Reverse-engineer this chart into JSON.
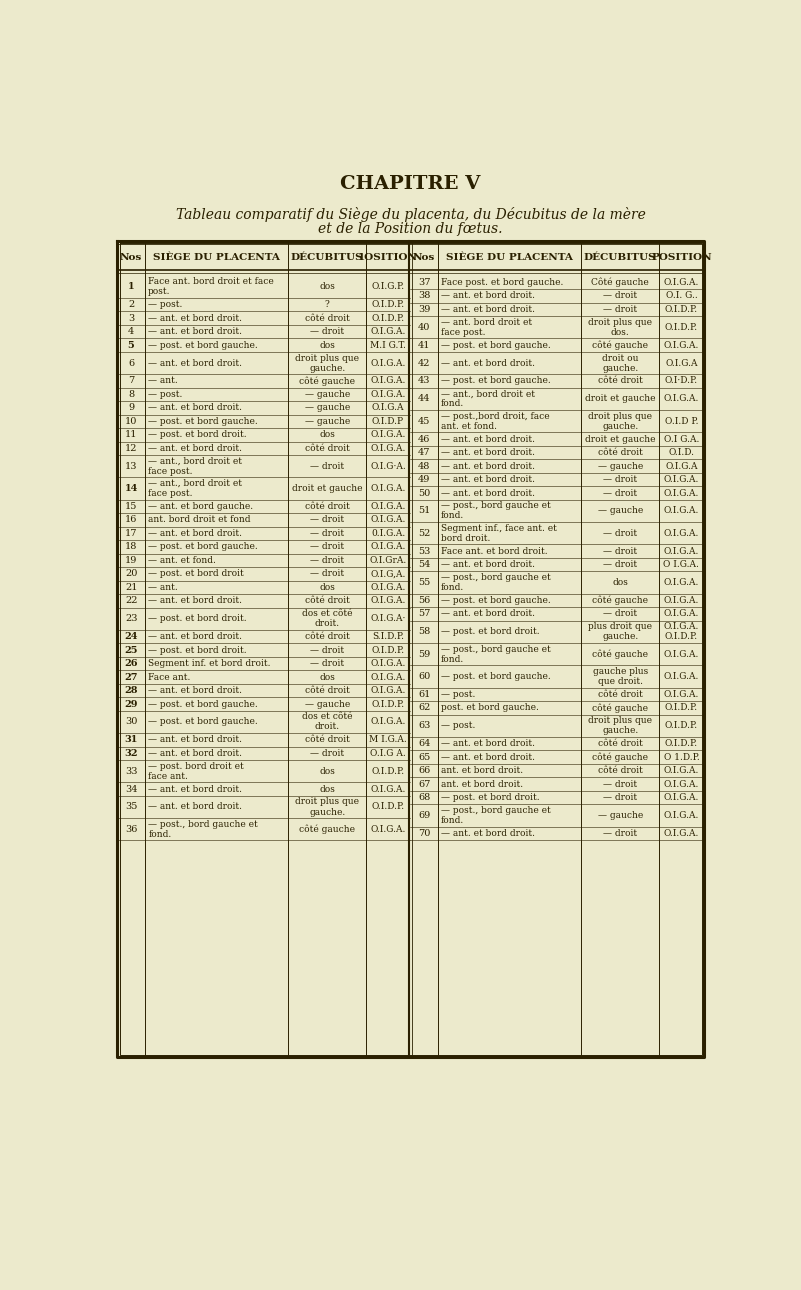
{
  "title1": "CHAPITRE V",
  "title2": "Tableau comparatif du Siège du placenta, du Décubitus de la mère",
  "title3": "et de la Position du fœtus.",
  "bg_color": "#ECEACC",
  "text_color": "#2a2000",
  "header_left": [
    "Nos",
    "SIÈGE DU PLACENTA",
    "DÉCUBITUS",
    "1OSITION"
  ],
  "header_right": [
    "Nos",
    "SIÈGE DU PLACENTA",
    "DÉCUBITUS",
    "POSITION"
  ],
  "rows_left": [
    [
      "1",
      "Face ant. bord droit et face\npost.",
      "dos",
      "O.I.G.P.",
      2
    ],
    [
      "2",
      "— post.",
      "?",
      "O.I.D.P.",
      1
    ],
    [
      "3",
      "— ant. et bord droit.",
      "côté droit",
      "O.I.D.P.",
      1
    ],
    [
      "4",
      "— ant. et bord droit.",
      "— droit",
      "O.I.G.A.",
      1
    ],
    [
      "5",
      "— post. et bord gauche.",
      "dos",
      "M.I G.T.",
      1
    ],
    [
      "6",
      "— ant. et bord droit.",
      "droit plus que\ngauche.",
      "O.I.G.A.",
      2
    ],
    [
      "7",
      "— ant.",
      "côté gauche",
      "O.I.G.A.",
      1
    ],
    [
      "8",
      "— post.",
      "— gauche",
      "O.I.G.A.",
      1
    ],
    [
      "9",
      "— ant. et bord droit.",
      "— gauche",
      "O.I.G.A",
      1
    ],
    [
      "10",
      "— post. et bord gauche.",
      "— gauche",
      "O.I.D.P",
      1
    ],
    [
      "11",
      "— post. et bord droit.",
      "dos",
      "O.I.G.A.",
      1
    ],
    [
      "12",
      "— ant. et bord droit.",
      "côté droit",
      "O.I.G.A.",
      1
    ],
    [
      "13",
      "— ant., bord droit et\nface post.",
      "— droit",
      "O.I.G·A.",
      2
    ],
    [
      "14",
      "— ant., bord droit et\nface post.",
      "droit et gauche",
      "O.I.G.A.",
      2
    ],
    [
      "15",
      "— ant. et bord gauche.",
      "côté droit",
      "O.I.G.A.",
      1
    ],
    [
      "16",
      "ant. bord droit et fond",
      "— droit",
      "O.I.G.A.",
      1
    ],
    [
      "17",
      "— ant. et bord droit.",
      "— droit",
      "0.I.G.A.",
      1
    ],
    [
      "18",
      "— post. et bord gauche.",
      "— droit",
      "O.I.G.A.",
      1
    ],
    [
      "19",
      "— ant. et fond.",
      "— droit",
      "O.I.GrA.",
      1
    ],
    [
      "20",
      "— post. et bord droit",
      "— droit",
      "O.I.G,A.",
      1
    ],
    [
      "21",
      "— ant.",
      "dos",
      "O.I.G.A.",
      1
    ],
    [
      "22",
      "— ant. et bord droit.",
      "côté droit",
      "O.I.G.A.",
      1
    ],
    [
      "23",
      "— post. et bord droit.",
      "dos et côté\ndroit.",
      "O.I.G.A·",
      2
    ],
    [
      "24",
      "— ant. et bord droit.",
      "côté droit",
      "S.I.D.P.",
      1
    ],
    [
      "25",
      "— post. et bord droit.",
      "— droit",
      "O.I.D.P.",
      1
    ],
    [
      "26",
      "Segment inf. et bord droit.",
      "— droit",
      "O.I.G.A.",
      1
    ],
    [
      "27",
      "Face ant.",
      "dos",
      "O.I.G.A.",
      1
    ],
    [
      "28",
      "— ant. et bord droit.",
      "côté droit",
      "O.I.G.A.",
      1
    ],
    [
      "29",
      "— post. et bord gauche.",
      "— gauche",
      "O.I.D.P.",
      1
    ],
    [
      "30",
      "— post. et bord gauche.",
      "dos et côté\ndroit.",
      "O.I.G.A.",
      2
    ],
    [
      "31",
      "— ant. et bord droit.",
      "côté droit",
      "M I.G.A.",
      1
    ],
    [
      "32",
      "— ant. et bord droit.",
      "— droit",
      "O.I.G A.",
      1
    ],
    [
      "33",
      "— post. bord droit et\nface ant.",
      "dos",
      "O.I.D.P.",
      2
    ],
    [
      "34",
      "— ant. et bord droit.",
      "dos",
      "O.I.G.A.",
      1
    ],
    [
      "35",
      "— ant. et bord droit.",
      "droit plus que\ngauche.",
      "O.I.D.P.",
      2
    ],
    [
      "36",
      "— post., bord gauche et\nfond.",
      "côté gauche",
      "O.I.G.A.",
      2
    ]
  ],
  "rows_right": [
    [
      "37",
      "Face post. et bord gauche.",
      "Côté gauche",
      "O.I.G.A.",
      1
    ],
    [
      "38",
      "— ant. et bord droit.",
      "— droit",
      "O.I. G..",
      1
    ],
    [
      "39",
      "— ant. et bord droit.",
      "— droit",
      "O.I.D.P.",
      1
    ],
    [
      "40",
      "— ant. bord droit et\nface post.",
      "droit plus que\ndos.",
      "O.I.D.P.",
      2
    ],
    [
      "41",
      "— post. et bord gauche.",
      "côté gauche",
      "O.I.G.A.",
      1
    ],
    [
      "42",
      "— ant. et bord droit.",
      "droit ou\ngauche.",
      "O.I.G.A",
      2
    ],
    [
      "43",
      "— post. et bord gauche.",
      "côté droit",
      "O.I·D.P.",
      1
    ],
    [
      "44",
      "— ant., bord droit et\nfond.",
      "droit et gauche",
      "O.I.G.A.",
      2
    ],
    [
      "45",
      "— post.,bord droit, face\nant. et fond.",
      "droit plus que\ngauche.",
      "O.I.D P.",
      2
    ],
    [
      "46",
      "— ant. et bord droit.",
      "droit et gauche",
      "O.I G.A.",
      1
    ],
    [
      "47",
      "— ant. et bord droit.",
      "côté droit",
      "O.I.D.",
      1
    ],
    [
      "48",
      "— ant. et bord droit.",
      "— gauche",
      "O.I.G.A",
      1
    ],
    [
      "49",
      "— ant. et bord droit.",
      "— droit",
      "O.I.G.A.",
      1
    ],
    [
      "50",
      "— ant. et bord droit.",
      "— droit",
      "O.I.G.A.",
      1
    ],
    [
      "51",
      "— post., bord gauche et\nfond.",
      "— gauche",
      "O.I.G.A.",
      2
    ],
    [
      "52",
      "Segment inf., face ant. et\nbord droit.",
      "— droit",
      "O.I.G.A.",
      2
    ],
    [
      "53",
      "Face ant. et bord droit.",
      "— droit",
      "O.I.G.A.",
      1
    ],
    [
      "54",
      "— ant. et bord droit.",
      "— droit",
      "O I.G.A.",
      1
    ],
    [
      "55",
      "— post., bord gauche et\nfond.",
      "dos",
      "O.I.G.A.",
      2
    ],
    [
      "56",
      "— post. et bord gauche.",
      "côté gauche",
      "O.I.G.A.",
      1
    ],
    [
      "57",
      "— ant. et bord droit.",
      "— droit",
      "O.I.G.A.",
      1
    ],
    [
      "58",
      "— post. et bord droit.",
      "plus droit que\ngauche.",
      "O.I.G.A.\nO.I.D.P.",
      2
    ],
    [
      "59",
      "— post., bord gauche et\nfond.",
      "côté gauche",
      "O.I.G.A.",
      2
    ],
    [
      "60",
      "— post. et bord gauche.",
      "gauche plus\nque droit.",
      "O.I.G.A.",
      2
    ],
    [
      "61",
      "— post.",
      "côté droit",
      "O.I.G.A.",
      1
    ],
    [
      "62",
      "post. et bord gauche.",
      "côté gauche",
      "O.I.D.P.",
      1
    ],
    [
      "63",
      "— post.",
      "droit plus que\ngauche.",
      "O.I.D.P.",
      2
    ],
    [
      "64",
      "— ant. et bord droit.",
      "côté droit",
      "O.I.D.P.",
      1
    ],
    [
      "65",
      "— ant. et bord droit.",
      "côté gauche",
      "O 1.D.P.",
      1
    ],
    [
      "66",
      "ant. et bord droit.",
      "côté droit",
      "O.I.G.A.",
      1
    ],
    [
      "67",
      "ant. et bord droit.",
      "— droit",
      "O.I.G.A.",
      1
    ],
    [
      "68",
      "— post. et bord droit.",
      "— droit",
      "O.I.G.A.",
      1
    ],
    [
      "69",
      "— post., bord gauche et\nfond.",
      "— gauche",
      "O.I.G.A.",
      2
    ],
    [
      "70",
      "— ant. et bord droit.",
      "— droit",
      "O.I.G.A.",
      1
    ]
  ]
}
